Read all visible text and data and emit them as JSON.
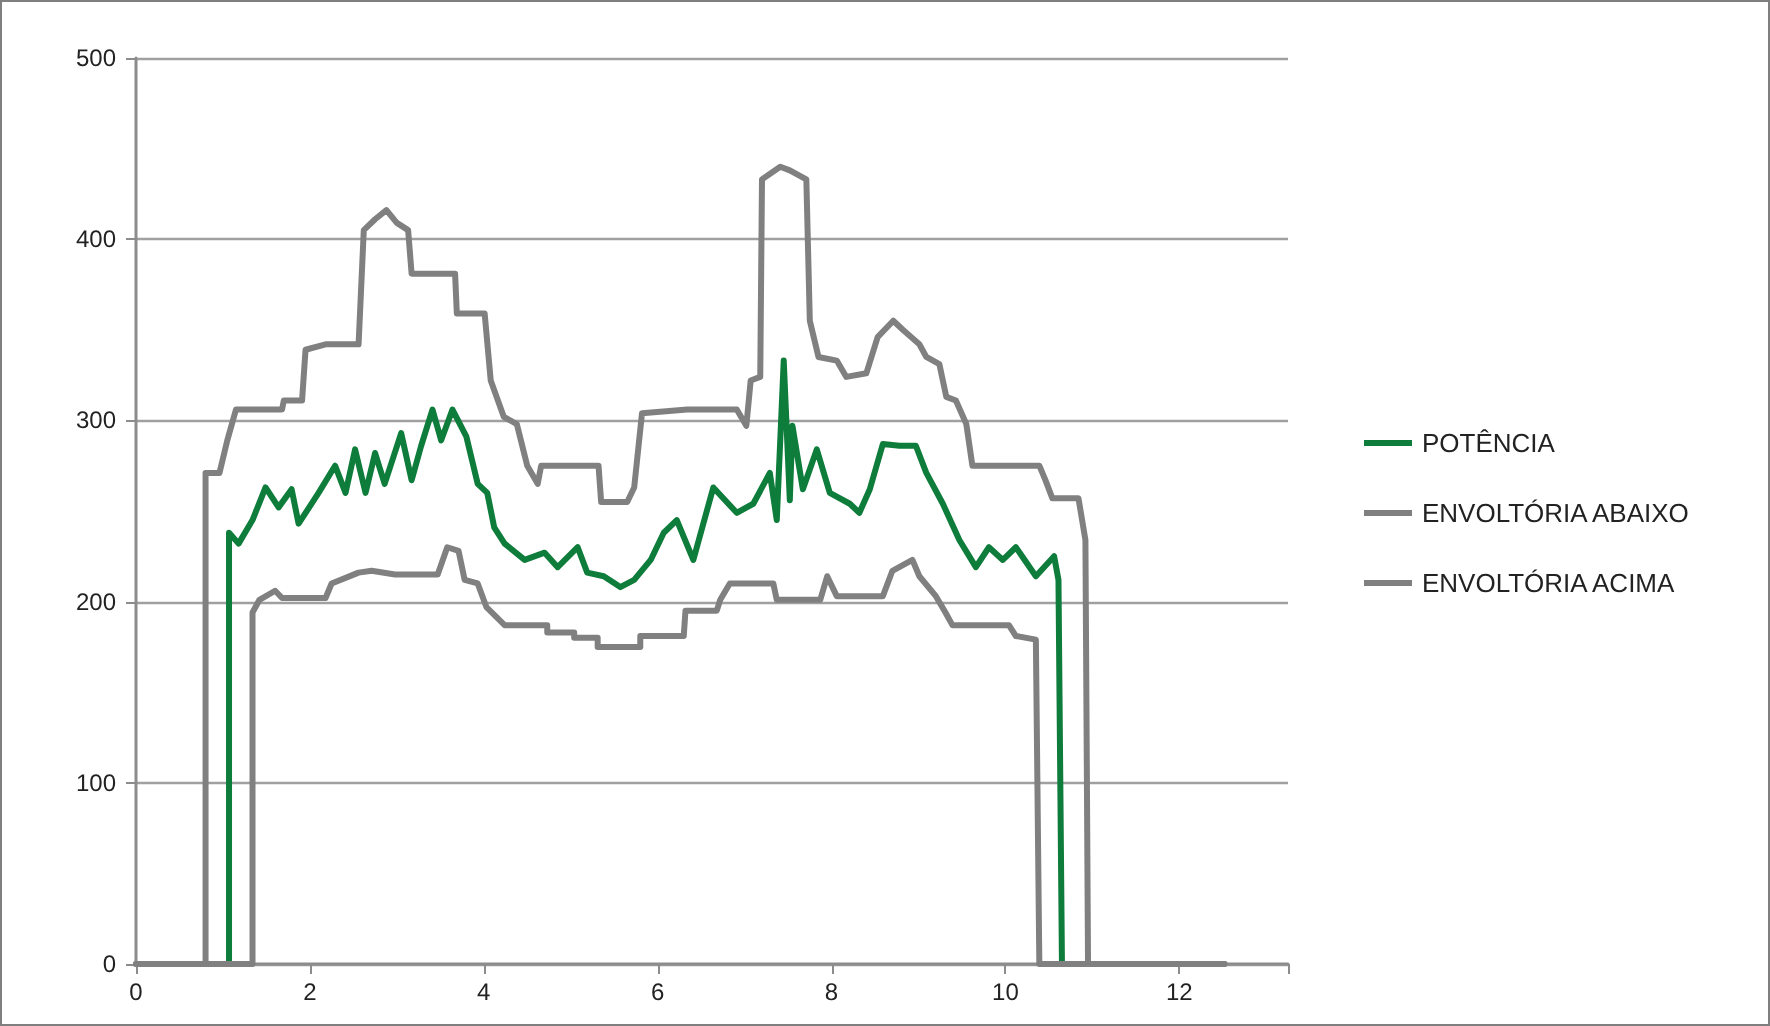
{
  "chart_data": {
    "type": "line",
    "xlim": [
      0,
      13.25
    ],
    "xticks": [
      0,
      2,
      4,
      6,
      8,
      10,
      12,
      {
        "value": 13.25,
        "label": null
      }
    ],
    "ylim": [
      0,
      500
    ],
    "yticks": [
      0,
      100,
      200,
      300,
      400,
      500
    ],
    "grid": "y",
    "legend": "right",
    "marker": "none",
    "line_style": "solid",
    "series": [
      {
        "name": "POTÊNCIA",
        "color": "#0e7c3a",
        "x": [
          1.07,
          1.07,
          1.18,
          1.34,
          1.49,
          1.64,
          1.79,
          1.87,
          2.1,
          2.29,
          2.41,
          2.52,
          2.64,
          2.75,
          2.86,
          3.05,
          3.17,
          3.28,
          3.41,
          3.51,
          3.64,
          3.8,
          3.93,
          4.04,
          4.12,
          4.24,
          4.47,
          4.7,
          4.85,
          5.08,
          5.19,
          5.38,
          5.57,
          5.73,
          5.92,
          6.07,
          6.22,
          6.41,
          6.64,
          6.91,
          7.1,
          7.29,
          7.37,
          7.45,
          7.52,
          7.55,
          7.67,
          7.83,
          7.98,
          8.21,
          8.32,
          8.44,
          8.59,
          8.78,
          8.97,
          9.09,
          9.28,
          9.47,
          9.66,
          9.81,
          9.97,
          10.12,
          10.35,
          10.56,
          10.61,
          10.65
        ],
        "values": [
          0,
          238,
          232,
          245,
          263,
          252,
          262,
          243,
          260,
          275,
          260,
          284,
          260,
          282,
          265,
          293,
          267,
          286,
          306,
          289,
          306,
          291,
          265,
          260,
          241,
          232,
          223,
          227,
          219,
          230,
          216,
          214,
          208,
          212,
          223,
          238,
          245,
          223,
          263,
          249,
          254,
          271,
          245,
          333,
          256,
          297,
          262,
          284,
          260,
          254,
          249,
          262,
          287,
          286,
          286,
          271,
          254,
          234,
          219,
          230,
          223,
          230,
          214,
          225,
          212,
          0
        ]
      },
      {
        "name": "ENVOLTÓRIA ABAIXO",
        "color": "#808080",
        "x": [
          0,
          1.34,
          1.34,
          1.42,
          1.6,
          1.68,
          2.18,
          2.25,
          2.56,
          2.71,
          2.98,
          3.47,
          3.58,
          3.71,
          3.78,
          3.93,
          4.03,
          4.24,
          4.73,
          4.73,
          5.04,
          5.04,
          5.31,
          5.31,
          5.8,
          5.8,
          6.3,
          6.32,
          6.68,
          6.72,
          6.83,
          7.33,
          7.37,
          7.87,
          7.95,
          8.06,
          8.59,
          8.7,
          8.93,
          9.01,
          9.2,
          9.31,
          9.39,
          10.04,
          10.12,
          10.35,
          10.39,
          12.52
        ],
        "values": [
          0,
          0,
          194,
          201,
          206,
          202,
          202,
          210,
          216,
          217,
          215,
          215,
          230,
          228,
          212,
          210,
          197,
          187,
          187,
          183,
          183,
          180,
          180,
          175,
          175,
          181,
          181,
          195,
          195,
          201,
          210,
          210,
          201,
          201,
          214,
          203,
          203,
          217,
          223,
          214,
          203,
          194,
          187,
          187,
          181,
          179,
          0,
          0
        ]
      },
      {
        "name": "ENVOLTÓRIA ACIMA",
        "color": "#808080",
        "x": [
          0,
          0.8,
          0.8,
          0.96,
          1.05,
          1.15,
          1.68,
          1.7,
          1.91,
          1.95,
          2.18,
          2.56,
          2.62,
          2.75,
          2.88,
          3.0,
          3.13,
          3.17,
          3.67,
          3.69,
          4.01,
          4.08,
          4.23,
          4.38,
          4.5,
          4.62,
          4.66,
          5.32,
          5.35,
          5.65,
          5.73,
          5.82,
          6.34,
          6.91,
          7.02,
          7.07,
          7.18,
          7.2,
          7.41,
          7.52,
          7.71,
          7.75,
          7.85,
          8.06,
          8.17,
          8.4,
          8.53,
          8.71,
          8.82,
          9.01,
          9.09,
          9.24,
          9.32,
          9.43,
          9.55,
          9.62,
          10.39,
          10.46,
          10.54,
          10.84,
          10.92,
          10.95,
          12.52
        ],
        "values": [
          0,
          0,
          271,
          271,
          289,
          306,
          306,
          311,
          311,
          339,
          342,
          342,
          405,
          411,
          416,
          409,
          405,
          381,
          381,
          359,
          359,
          322,
          302,
          298,
          275,
          265,
          275,
          275,
          255,
          255,
          263,
          304,
          306,
          306,
          297,
          322,
          324,
          433,
          440,
          438,
          433,
          355,
          335,
          333,
          324,
          326,
          346,
          355,
          350,
          342,
          335,
          331,
          313,
          311,
          298,
          275,
          275,
          267,
          257,
          257,
          234,
          0,
          0
        ]
      }
    ]
  }
}
